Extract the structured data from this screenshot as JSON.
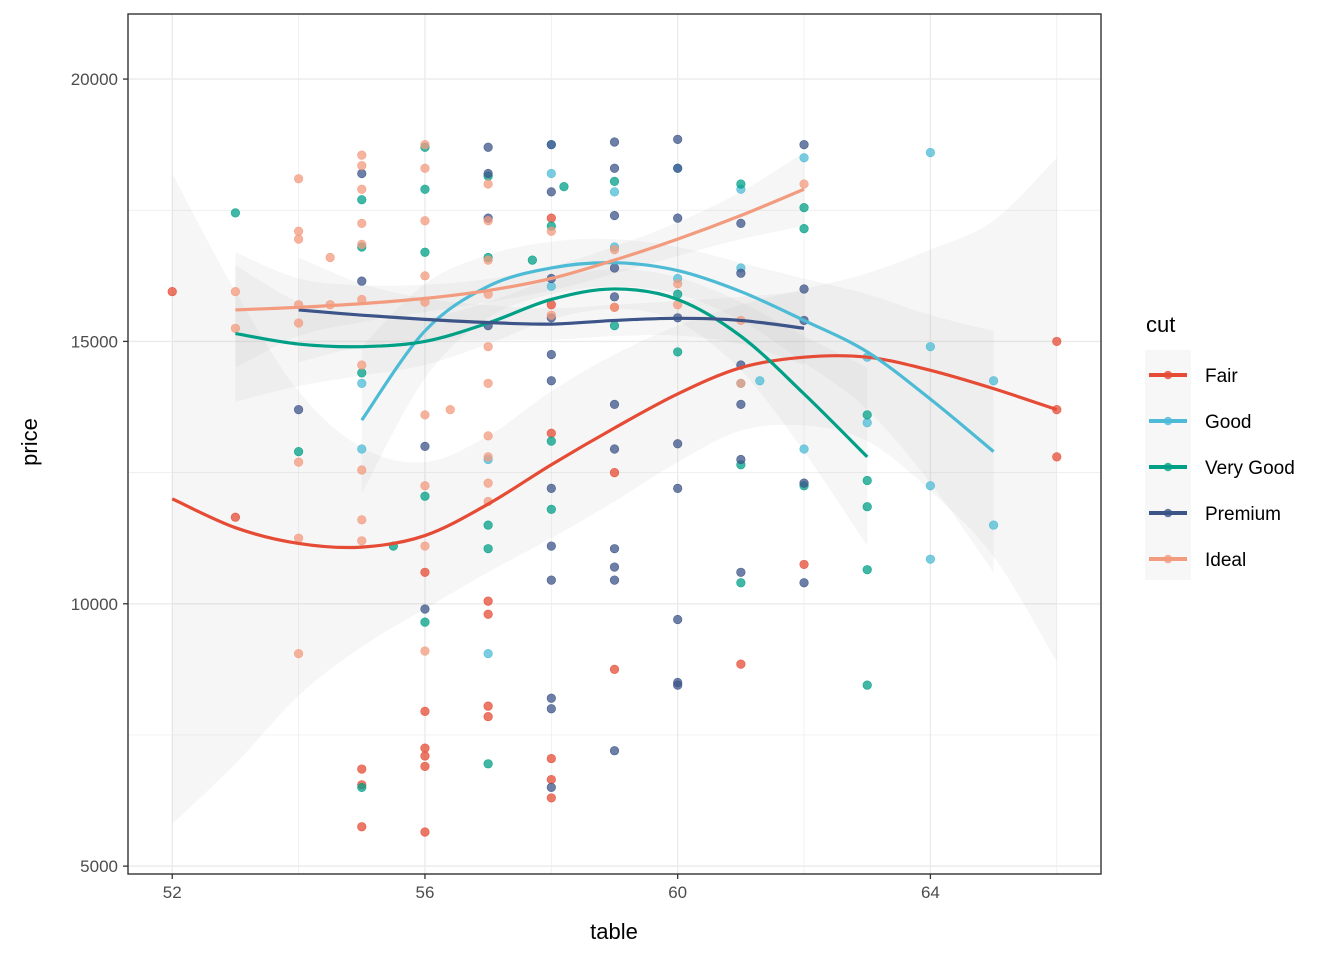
{
  "chart_data": {
    "type": "scatter",
    "title": "",
    "xlabel": "table",
    "ylabel": "price",
    "xlim": [
      51.3,
      66.7
    ],
    "ylim": [
      4850,
      21240
    ],
    "x_ticks": [
      52,
      56,
      60,
      64
    ],
    "x_tick_labels": [
      "52",
      "56",
      "60",
      "64"
    ],
    "y_ticks": [
      5000,
      10000,
      15000,
      20000
    ],
    "y_tick_labels": [
      "5000",
      "10000",
      "15000",
      "20000"
    ],
    "grid": true,
    "legend": {
      "title": "cut",
      "position": "right"
    },
    "series": [
      {
        "name": "Fair",
        "color": "#E64B35",
        "points": [
          [
            52,
            15950
          ],
          [
            53,
            11650
          ],
          [
            55,
            6850
          ],
          [
            55,
            6550
          ],
          [
            55,
            5750
          ],
          [
            56,
            10600
          ],
          [
            56,
            7950
          ],
          [
            56,
            7250
          ],
          [
            56,
            7100
          ],
          [
            56,
            6900
          ],
          [
            56,
            5650
          ],
          [
            57,
            10050
          ],
          [
            57,
            9800
          ],
          [
            57,
            8050
          ],
          [
            57,
            7850
          ],
          [
            58,
            13250
          ],
          [
            58,
            7050
          ],
          [
            58,
            6650
          ],
          [
            58,
            6300
          ],
          [
            59,
            12500
          ],
          [
            59,
            8750
          ],
          [
            61,
            8850
          ],
          [
            62,
            10750
          ],
          [
            66,
            15000
          ],
          [
            66,
            13700
          ],
          [
            66,
            12800
          ],
          [
            58,
            17350
          ],
          [
            58,
            15700
          ],
          [
            59,
            15650
          ]
        ],
        "smooth": [
          [
            52,
            12000
          ],
          [
            53,
            11450
          ],
          [
            54,
            11150
          ],
          [
            55,
            11080
          ],
          [
            56,
            11300
          ],
          [
            57,
            11900
          ],
          [
            58,
            12650
          ],
          [
            59,
            13350
          ],
          [
            60,
            14000
          ],
          [
            61,
            14500
          ],
          [
            62,
            14700
          ],
          [
            63,
            14700
          ],
          [
            64,
            14450
          ],
          [
            65,
            14100
          ],
          [
            66,
            13700
          ]
        ],
        "ribbon_halfwidth": [
          6200,
          4500,
          2900,
          1900,
          1400,
          1300,
          1400,
          1400,
          1300,
          1200,
          1300,
          1600,
          2300,
          3200,
          4800
        ]
      },
      {
        "name": "Good",
        "color": "#4DBBD5",
        "points": [
          [
            55,
            14200
          ],
          [
            55,
            12950
          ],
          [
            57,
            12750
          ],
          [
            57,
            9050
          ],
          [
            58,
            18750
          ],
          [
            58,
            18200
          ],
          [
            58,
            16050
          ],
          [
            59,
            17850
          ],
          [
            59,
            16800
          ],
          [
            60,
            18300
          ],
          [
            60,
            16200
          ],
          [
            61,
            14200
          ],
          [
            61,
            16400
          ],
          [
            61,
            17900
          ],
          [
            61.3,
            14250
          ],
          [
            62,
            18500
          ],
          [
            62,
            12950
          ],
          [
            63,
            14700
          ],
          [
            63,
            13450
          ],
          [
            64,
            18600
          ],
          [
            64,
            14900
          ],
          [
            64,
            12250
          ],
          [
            64,
            10850
          ],
          [
            65,
            14250
          ],
          [
            65,
            11500
          ]
        ],
        "smooth": [
          [
            55,
            13500
          ],
          [
            56,
            15200
          ],
          [
            57,
            16050
          ],
          [
            58,
            16400
          ],
          [
            59,
            16500
          ],
          [
            60,
            16350
          ],
          [
            61,
            15950
          ],
          [
            62,
            15400
          ],
          [
            63,
            14800
          ],
          [
            64,
            13900
          ],
          [
            65,
            12900
          ]
        ],
        "ribbon_halfwidth": [
          1400,
          900,
          600,
          500,
          450,
          450,
          550,
          800,
          1100,
          1600,
          2300
        ]
      },
      {
        "name": "Very Good",
        "color": "#00A087",
        "points": [
          [
            53,
            17450
          ],
          [
            54,
            12900
          ],
          [
            55,
            17700
          ],
          [
            55,
            16800
          ],
          [
            55,
            14400
          ],
          [
            55,
            6500
          ],
          [
            55.5,
            11100
          ],
          [
            56,
            18700
          ],
          [
            56,
            17900
          ],
          [
            56,
            16700
          ],
          [
            56,
            12050
          ],
          [
            56,
            9650
          ],
          [
            57,
            18150
          ],
          [
            57,
            16600
          ],
          [
            57,
            11500
          ],
          [
            57,
            11050
          ],
          [
            57,
            6950
          ],
          [
            57.7,
            16550
          ],
          [
            58,
            17200
          ],
          [
            58,
            13100
          ],
          [
            58,
            11800
          ],
          [
            58.2,
            17950
          ],
          [
            59,
            18050
          ],
          [
            59,
            15300
          ],
          [
            60,
            15900
          ],
          [
            60,
            14800
          ],
          [
            61,
            18000
          ],
          [
            61,
            12650
          ],
          [
            61,
            10400
          ],
          [
            62,
            17550
          ],
          [
            62,
            17150
          ],
          [
            62,
            12250
          ],
          [
            63,
            13600
          ],
          [
            63,
            12350
          ],
          [
            63,
            11850
          ],
          [
            63,
            10650
          ],
          [
            63,
            8450
          ]
        ],
        "smooth": [
          [
            53,
            15150
          ],
          [
            54,
            14950
          ],
          [
            55,
            14900
          ],
          [
            56,
            15000
          ],
          [
            57,
            15350
          ],
          [
            58,
            15800
          ],
          [
            59,
            16000
          ],
          [
            60,
            15800
          ],
          [
            61,
            15100
          ],
          [
            62,
            14000
          ],
          [
            63,
            12800
          ]
        ],
        "ribbon_halfwidth": [
          1300,
          800,
          550,
          450,
          400,
          380,
          380,
          420,
          650,
          1100,
          1700
        ]
      },
      {
        "name": "Premium",
        "color": "#3C5488",
        "points": [
          [
            54,
            13700
          ],
          [
            55,
            18200
          ],
          [
            55,
            16150
          ],
          [
            56,
            13000
          ],
          [
            56,
            9900
          ],
          [
            57,
            18700
          ],
          [
            57,
            18200
          ],
          [
            57,
            17350
          ],
          [
            57,
            15300
          ],
          [
            58,
            18750
          ],
          [
            58,
            17850
          ],
          [
            58,
            16200
          ],
          [
            58,
            15450
          ],
          [
            58,
            14750
          ],
          [
            58,
            14250
          ],
          [
            58,
            12200
          ],
          [
            58,
            11100
          ],
          [
            58,
            10450
          ],
          [
            58,
            8200
          ],
          [
            58,
            8000
          ],
          [
            58,
            6500
          ],
          [
            59,
            18800
          ],
          [
            59,
            18300
          ],
          [
            59,
            17400
          ],
          [
            59,
            16400
          ],
          [
            59,
            15850
          ],
          [
            59,
            13800
          ],
          [
            59,
            12950
          ],
          [
            59,
            11050
          ],
          [
            59,
            10700
          ],
          [
            59,
            10450
          ],
          [
            59,
            7200
          ],
          [
            60,
            18850
          ],
          [
            60,
            18300
          ],
          [
            60,
            17350
          ],
          [
            60,
            15450
          ],
          [
            60,
            13050
          ],
          [
            60,
            12200
          ],
          [
            60,
            9700
          ],
          [
            60,
            8500
          ],
          [
            60,
            8450
          ],
          [
            61,
            17250
          ],
          [
            61,
            16300
          ],
          [
            61,
            14550
          ],
          [
            61,
            13800
          ],
          [
            61,
            12750
          ],
          [
            61,
            10600
          ],
          [
            62,
            18750
          ],
          [
            62,
            16000
          ],
          [
            62,
            15400
          ],
          [
            62,
            12300
          ],
          [
            62,
            10400
          ]
        ],
        "smooth": [
          [
            54,
            15600
          ],
          [
            55,
            15500
          ],
          [
            56,
            15420
          ],
          [
            57,
            15360
          ],
          [
            58,
            15330
          ],
          [
            59,
            15400
          ],
          [
            60,
            15440
          ],
          [
            61,
            15400
          ],
          [
            62,
            15250
          ]
        ],
        "ribbon_halfwidth": [
          1000,
          600,
          400,
          330,
          300,
          300,
          330,
          450,
          700
        ]
      },
      {
        "name": "Ideal",
        "color": "#F39B7F",
        "points": [
          [
            53,
            15950
          ],
          [
            53,
            15250
          ],
          [
            54,
            18100
          ],
          [
            54,
            17100
          ],
          [
            54,
            16950
          ],
          [
            54,
            15700
          ],
          [
            54,
            15350
          ],
          [
            54,
            12700
          ],
          [
            54,
            11250
          ],
          [
            54,
            9050
          ],
          [
            54.5,
            16600
          ],
          [
            54.5,
            15700
          ],
          [
            55,
            17900
          ],
          [
            55,
            18550
          ],
          [
            55,
            18350
          ],
          [
            55,
            17250
          ],
          [
            55,
            16850
          ],
          [
            55,
            15800
          ],
          [
            55,
            14550
          ],
          [
            55,
            12550
          ],
          [
            55,
            11600
          ],
          [
            55,
            11200
          ],
          [
            56,
            18750
          ],
          [
            56,
            18300
          ],
          [
            56,
            17300
          ],
          [
            56,
            16250
          ],
          [
            56,
            15750
          ],
          [
            56,
            13600
          ],
          [
            56,
            12250
          ],
          [
            56,
            11100
          ],
          [
            56,
            9100
          ],
          [
            56.4,
            13700
          ],
          [
            57,
            18000
          ],
          [
            57,
            17300
          ],
          [
            57,
            16550
          ],
          [
            57,
            15900
          ],
          [
            57,
            14900
          ],
          [
            57,
            14200
          ],
          [
            57,
            13200
          ],
          [
            57,
            12800
          ],
          [
            57,
            12300
          ],
          [
            57,
            11950
          ],
          [
            58,
            17100
          ],
          [
            58,
            15500
          ],
          [
            59,
            16750
          ],
          [
            59,
            15650
          ],
          [
            60,
            16100
          ],
          [
            60,
            15700
          ],
          [
            61,
            15400
          ],
          [
            61,
            14200
          ],
          [
            62,
            18000
          ]
        ],
        "smooth": [
          [
            53,
            15600
          ],
          [
            54,
            15650
          ],
          [
            55,
            15720
          ],
          [
            56,
            15820
          ],
          [
            57,
            15970
          ],
          [
            58,
            16200
          ],
          [
            59,
            16550
          ],
          [
            60,
            16950
          ],
          [
            61,
            17400
          ],
          [
            62,
            17900
          ]
        ],
        "ribbon_halfwidth": [
          1100,
          550,
          350,
          260,
          220,
          230,
          260,
          320,
          450,
          700
        ]
      }
    ]
  }
}
